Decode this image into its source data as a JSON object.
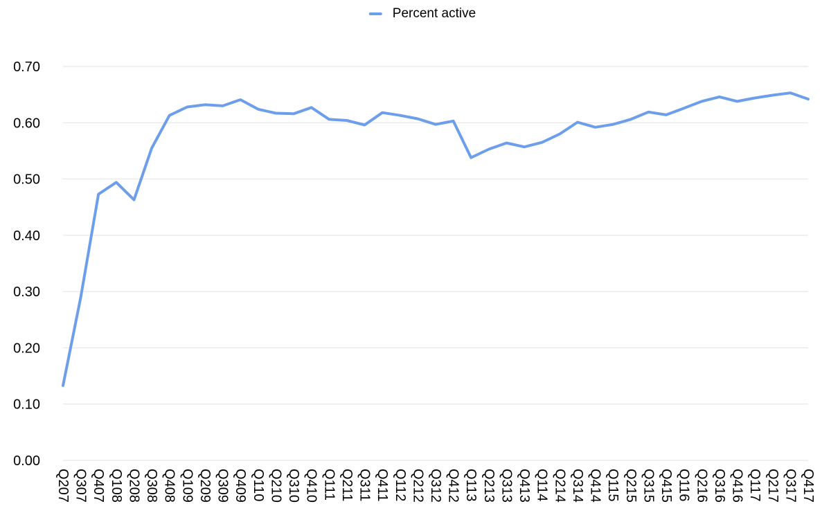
{
  "legend": {
    "label": "Percent active",
    "swatch_color": "#6d9eeb"
  },
  "chart_data": {
    "type": "line",
    "title": "",
    "xlabel": "",
    "ylabel": "",
    "legend_entries": [
      "Percent active"
    ],
    "legend_position": "top-center",
    "grid": true,
    "ylim": [
      0,
      0.7
    ],
    "ytick_step": 0.1,
    "ytick_label_format": "0.00",
    "categories": [
      "Q207",
      "Q307",
      "Q407",
      "Q108",
      "Q208",
      "Q308",
      "Q408",
      "Q109",
      "Q209",
      "Q309",
      "Q409",
      "Q110",
      "Q210",
      "Q310",
      "Q410",
      "Q111",
      "Q211",
      "Q311",
      "Q411",
      "Q112",
      "Q212",
      "Q312",
      "Q412",
      "Q113",
      "Q213",
      "Q313",
      "Q413",
      "Q114",
      "Q214",
      "Q314",
      "Q414",
      "Q115",
      "Q215",
      "Q315",
      "Q415",
      "Q116",
      "Q216",
      "Q316",
      "Q416",
      "Q117",
      "Q217",
      "Q317",
      "Q417"
    ],
    "series": [
      {
        "name": "Percent active",
        "values": [
          0.133,
          0.29,
          0.473,
          0.494,
          0.463,
          0.555,
          0.613,
          0.628,
          0.632,
          0.63,
          0.641,
          0.624,
          0.617,
          0.616,
          0.627,
          0.606,
          0.604,
          0.596,
          0.618,
          0.613,
          0.607,
          0.597,
          0.603,
          0.538,
          0.553,
          0.564,
          0.557,
          0.565,
          0.58,
          0.601,
          0.592,
          0.597,
          0.606,
          0.619,
          0.614,
          0.626,
          0.638,
          0.646,
          0.638,
          0.644,
          0.649,
          0.653,
          0.642
        ]
      }
    ],
    "colors": {
      "line": "#6d9eeb",
      "gridline": "#e2e2e2",
      "axis_labels": "#000000",
      "background": "#ffffff"
    }
  }
}
